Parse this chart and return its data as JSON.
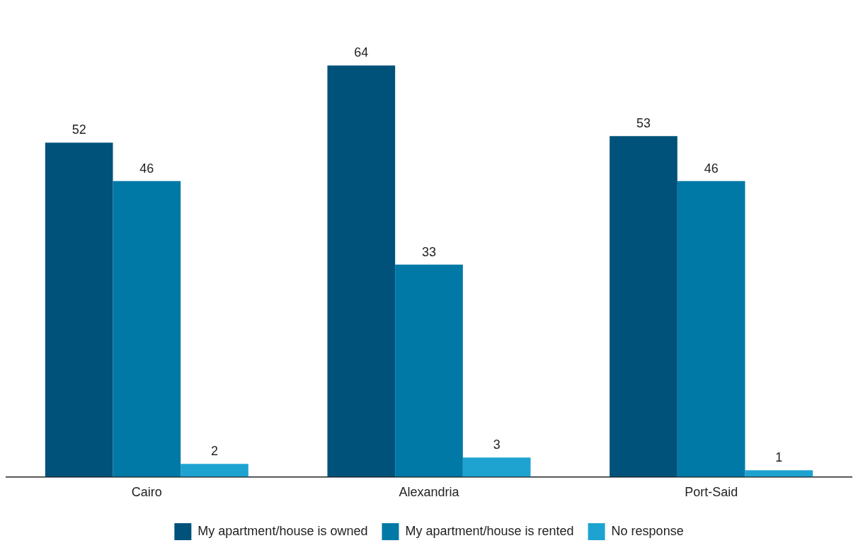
{
  "chart_data": {
    "type": "bar",
    "categories": [
      "Cairo",
      "Alexandria",
      "Port-Said"
    ],
    "series": [
      {
        "name": "My apartment/house is owned",
        "color": "#00527a",
        "values": [
          52,
          64,
          53
        ]
      },
      {
        "name": "My apartment/house is rented",
        "color": "#0079a6",
        "values": [
          46,
          33,
          46
        ]
      },
      {
        "name": "No response",
        "color": "#1ea3d1",
        "values": [
          2,
          3,
          1
        ]
      }
    ],
    "data_labels": true,
    "legend": "bottom",
    "grid": false
  }
}
